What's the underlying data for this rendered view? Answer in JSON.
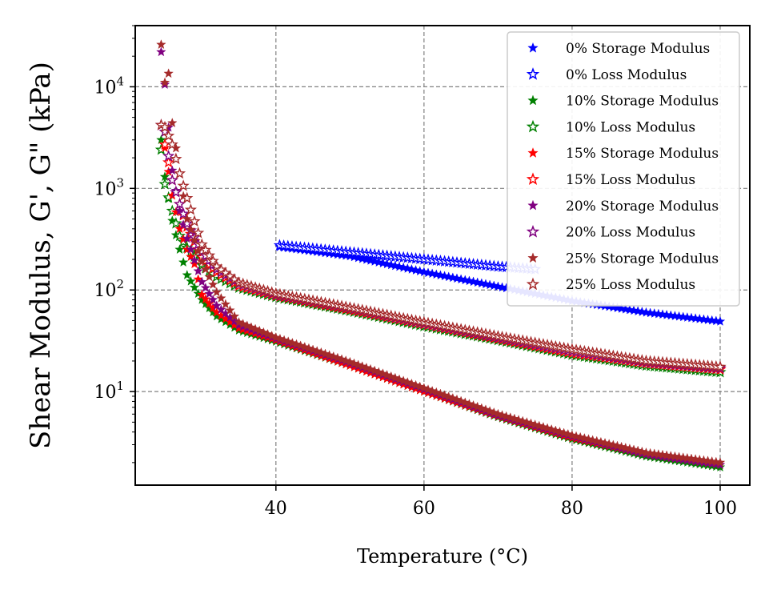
{
  "chart_data": {
    "type": "scatter",
    "title": "",
    "xlabel": "Temperature (°C)",
    "ylabel": "Shear Modulus, G', G\" (kPa)",
    "xscale": "linear",
    "yscale": "log",
    "xlim": [
      21,
      104
    ],
    "ylim": [
      1.2,
      40000
    ],
    "xticks": [
      40,
      60,
      80,
      100
    ],
    "xtick_labels": [
      "40",
      "60",
      "80",
      "100"
    ],
    "yticks": [
      10,
      100,
      1000,
      10000
    ],
    "ytick_labels": [
      [
        "10",
        "1"
      ],
      [
        "10",
        "2"
      ],
      [
        "10",
        "3"
      ],
      [
        "10",
        "4"
      ]
    ],
    "grid": true,
    "legend_position": "top-right",
    "marker": "star",
    "series": [
      {
        "name": "0% Storage Modulus",
        "color": "#0000ff",
        "filled": true,
        "x": [
          40.5,
          50,
          60,
          70,
          80,
          90,
          100
        ],
        "y": [
          265,
          215,
          150,
          108,
          78,
          60,
          49
        ]
      },
      {
        "name": "0% Loss Modulus",
        "color": "#0000ff",
        "filled": false,
        "x": [
          40.5,
          50,
          60,
          70,
          75
        ],
        "y": [
          275,
          235,
          200,
          170,
          160
        ]
      },
      {
        "name": "10% Storage Modulus",
        "color": "#008000",
        "filled": true,
        "x": [
          24.5,
          25,
          26,
          27,
          28,
          30,
          32,
          35,
          40,
          50,
          60,
          70,
          80,
          90,
          100
        ],
        "y": [
          3000,
          1300,
          480,
          250,
          140,
          80,
          55,
          40,
          31,
          18,
          10,
          5.6,
          3.4,
          2.3,
          1.8
        ]
      },
      {
        "name": "10% Loss Modulus",
        "color": "#008000",
        "filled": false,
        "x": [
          24.5,
          25,
          26,
          27,
          28,
          30,
          32,
          35,
          40,
          50,
          60,
          70,
          80,
          90,
          100
        ],
        "y": [
          2400,
          1100,
          600,
          340,
          260,
          175,
          135,
          105,
          85,
          62,
          44,
          32,
          23,
          18,
          15.5
        ]
      },
      {
        "name": "15% Storage Modulus",
        "color": "#ff0000",
        "filled": true,
        "x": [
          25,
          26,
          27,
          28,
          29,
          30,
          32,
          35,
          40,
          50,
          60,
          70,
          80,
          90,
          100
        ],
        "y": [
          2500,
          850,
          400,
          250,
          180,
          90,
          60,
          42,
          32,
          18,
          10,
          5.7,
          3.5,
          2.4,
          1.9
        ]
      },
      {
        "name": "15% Loss Modulus",
        "color": "#ff0000",
        "filled": false,
        "x": [
          25,
          26,
          27,
          28,
          29,
          30,
          32,
          35,
          40,
          50,
          60,
          70,
          80,
          90,
          100
        ],
        "y": [
          2700,
          1200,
          700,
          420,
          300,
          210,
          150,
          110,
          88,
          64,
          46,
          33,
          24,
          19,
          16.5
        ]
      },
      {
        "name": "20% Storage Modulus",
        "color": "#800080",
        "filled": true,
        "x": [
          24.5,
          25,
          26,
          27,
          28,
          30,
          32,
          35,
          40,
          50,
          60,
          70,
          80,
          90,
          100
        ],
        "y": [
          22000,
          10500,
          1500,
          600,
          320,
          120,
          70,
          45,
          33,
          19,
          10.5,
          5.8,
          3.6,
          2.4,
          1.9
        ]
      },
      {
        "name": "20% Loss Modulus",
        "color": "#800080",
        "filled": false,
        "x": [
          24.5,
          25,
          26,
          27,
          28,
          30,
          32,
          35,
          40,
          50,
          60,
          70,
          80,
          90,
          100
        ],
        "y": [
          4200,
          3600,
          1200,
          700,
          450,
          240,
          160,
          115,
          90,
          66,
          47,
          34,
          25,
          19.5,
          17
        ]
      },
      {
        "name": "25% Storage Modulus",
        "color": "#a52a2a",
        "filled": true,
        "x": [
          24.5,
          25,
          25.5,
          26,
          27,
          28,
          30,
          32,
          35,
          40,
          50,
          60,
          70,
          80,
          90,
          100
        ],
        "y": [
          26000,
          11000,
          13500,
          4400,
          1400,
          500,
          190,
          95,
          48,
          34,
          19.5,
          10.8,
          6,
          3.7,
          2.5,
          2
        ]
      },
      {
        "name": "25% Loss Modulus",
        "color": "#a52a2a",
        "filled": false,
        "x": [
          24.5,
          25,
          26,
          27,
          28,
          30,
          32,
          35,
          40,
          50,
          60,
          70,
          80,
          90,
          100
        ],
        "y": [
          4200,
          4000,
          2700,
          1400,
          800,
          280,
          170,
          118,
          92,
          67,
          48,
          35,
          26,
          20,
          17.5
        ]
      }
    ]
  }
}
